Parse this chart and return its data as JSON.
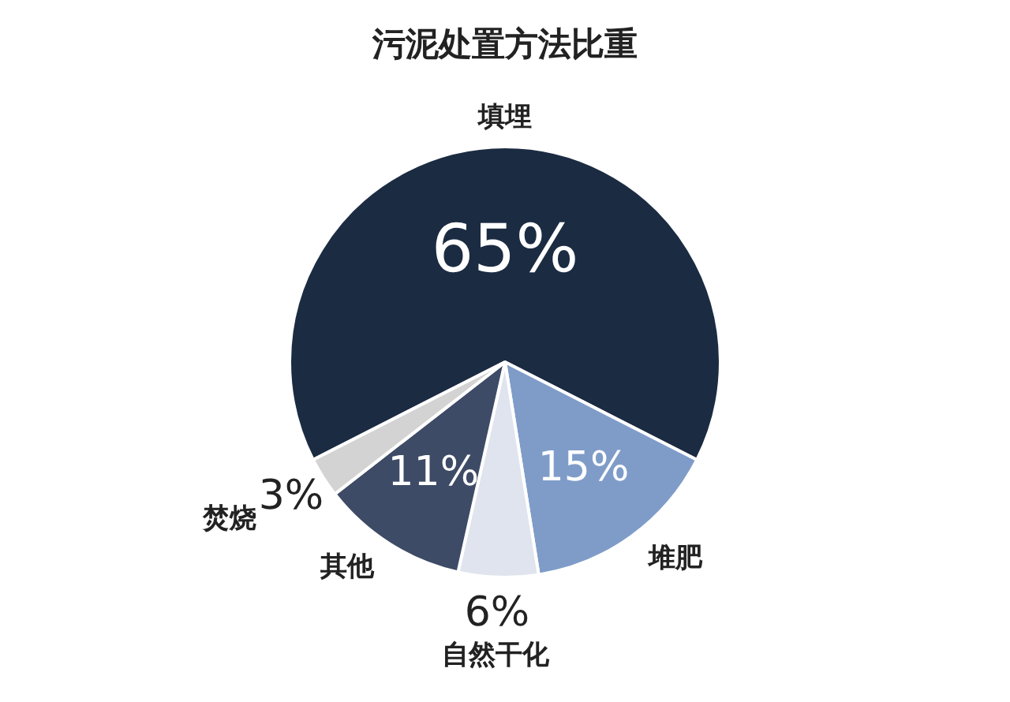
{
  "chart_data": {
    "type": "pie",
    "title": "污泥处置方法比重",
    "categories": [
      "填埋",
      "堆肥",
      "自然干化",
      "其他",
      "焚烧"
    ],
    "values": [
      65,
      15,
      6,
      11,
      3
    ],
    "colors": [
      "#1b2b42",
      "#7f9cc9",
      "#dfe4ee",
      "#3e4b66",
      "#d3d3d3"
    ],
    "value_labels": [
      "65%",
      "15%",
      "6%",
      "11%",
      "3%"
    ],
    "legend": false
  }
}
